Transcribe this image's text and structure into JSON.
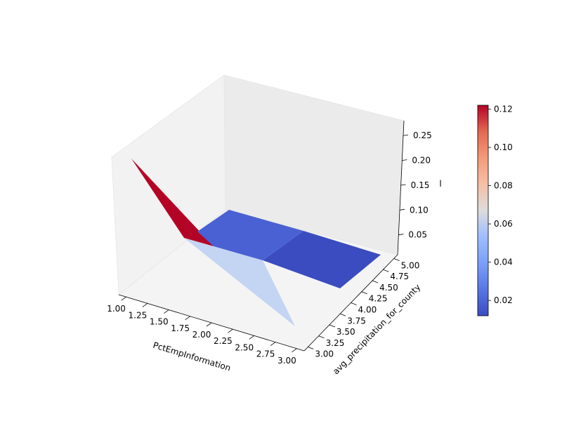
{
  "chart_data": {
    "type": "surface3d",
    "xlabel": "PctEmpInformation",
    "ylabel": "avg_precipitation_for_county",
    "zlabel": "l",
    "x_ticks": [
      "1.00",
      "1.25",
      "1.50",
      "1.75",
      "2.00",
      "2.25",
      "2.50",
      "2.75",
      "3.00"
    ],
    "y_ticks": [
      "3.00",
      "3.25",
      "3.50",
      "3.75",
      "4.00",
      "4.25",
      "4.50",
      "4.75",
      "5.00"
    ],
    "z_ticks": [
      "0.05",
      "0.10",
      "0.15",
      "0.20",
      "0.25"
    ],
    "x": [
      1.0,
      2.0,
      3.0
    ],
    "y": [
      3.0,
      4.0,
      5.0
    ],
    "z": [
      [
        0.0,
        0.0,
        0.27
      ],
      [
        0.07,
        0.01,
        0.0
      ],
      [
        0.0,
        0.01,
        0.01
      ]
    ],
    "xlim": [
      1.0,
      3.0
    ],
    "ylim": [
      3.0,
      5.0
    ],
    "zlim": [
      0.01,
      0.28
    ],
    "colormap": "coolwarm",
    "colorbar": {
      "ticks": [
        "0.02",
        "0.04",
        "0.06",
        "0.08",
        "0.10",
        "0.12"
      ],
      "tick_values": [
        0.02,
        0.04,
        0.06,
        0.08,
        0.1,
        0.12
      ],
      "range": [
        0.012,
        0.122
      ]
    },
    "patches": [
      {
        "id": "patch-0-0",
        "color": "#c4d5f3",
        "value": 0.05
      },
      {
        "id": "patch-1-0",
        "color": "#b40426",
        "value": 0.12
      },
      {
        "id": "patch-0-1",
        "color": "#3b4cc0",
        "value": 0.012
      },
      {
        "id": "patch-1-1",
        "color": "#4961d2",
        "value": 0.02
      }
    ]
  }
}
